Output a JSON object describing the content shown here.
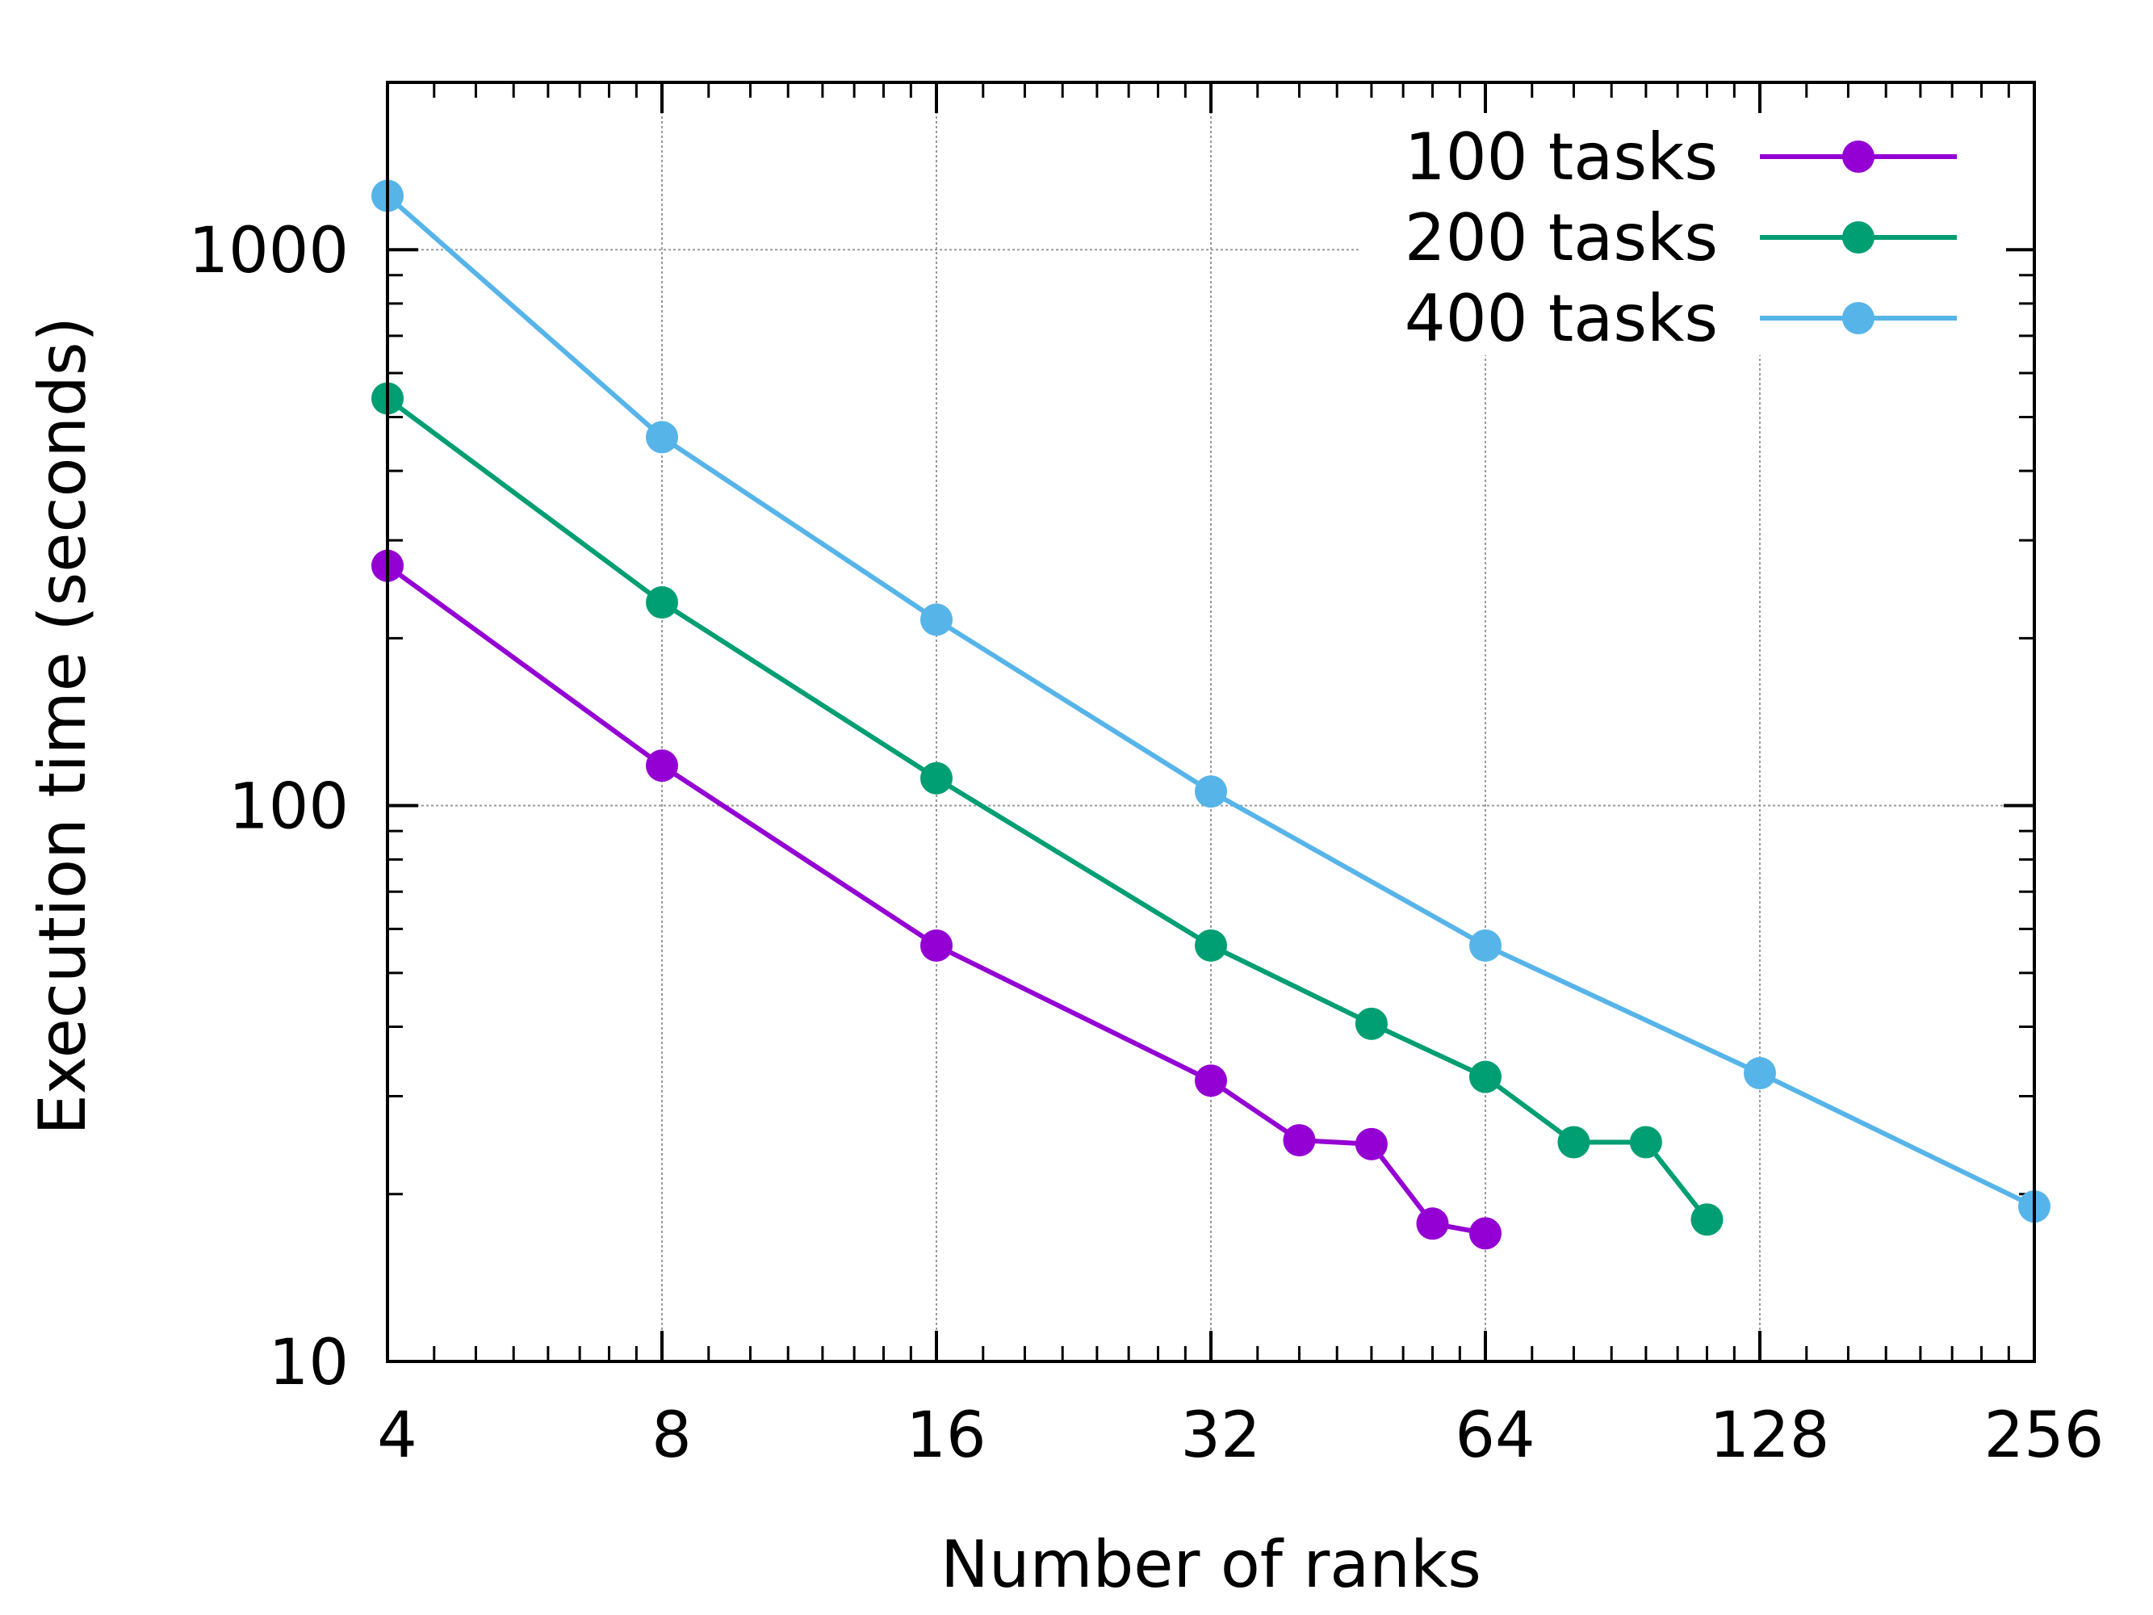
{
  "chart_data": {
    "type": "line",
    "xlabel": "Number of ranks",
    "ylabel": "Execution time (seconds)",
    "x_scale": "log2",
    "y_scale": "log10",
    "xlim": [
      4,
      256
    ],
    "ylim": [
      10,
      2000
    ],
    "x_ticks": [
      4,
      8,
      16,
      32,
      64,
      128,
      256
    ],
    "y_ticks": [
      10,
      100,
      1000
    ],
    "grid": true,
    "legend_position": "top-right",
    "series": [
      {
        "name": "100 tasks",
        "color": "#9400d3",
        "x": [
          4,
          8,
          16,
          32,
          40,
          48,
          56,
          64
        ],
        "y": [
          270,
          118,
          56,
          32,
          25,
          24.6,
          17.7,
          17
        ]
      },
      {
        "name": "200 tasks",
        "color": "#009e73",
        "x": [
          4,
          8,
          16,
          32,
          48,
          64,
          80,
          96,
          112
        ],
        "y": [
          540,
          232,
          112,
          56,
          40.5,
          32.5,
          24.8,
          24.8,
          18
        ]
      },
      {
        "name": "400 tasks",
        "color": "#56b4e9",
        "x": [
          4,
          8,
          16,
          32,
          64,
          128,
          256
        ],
        "y": [
          1250,
          460,
          216,
          106,
          56,
          33,
          19
        ]
      }
    ]
  }
}
